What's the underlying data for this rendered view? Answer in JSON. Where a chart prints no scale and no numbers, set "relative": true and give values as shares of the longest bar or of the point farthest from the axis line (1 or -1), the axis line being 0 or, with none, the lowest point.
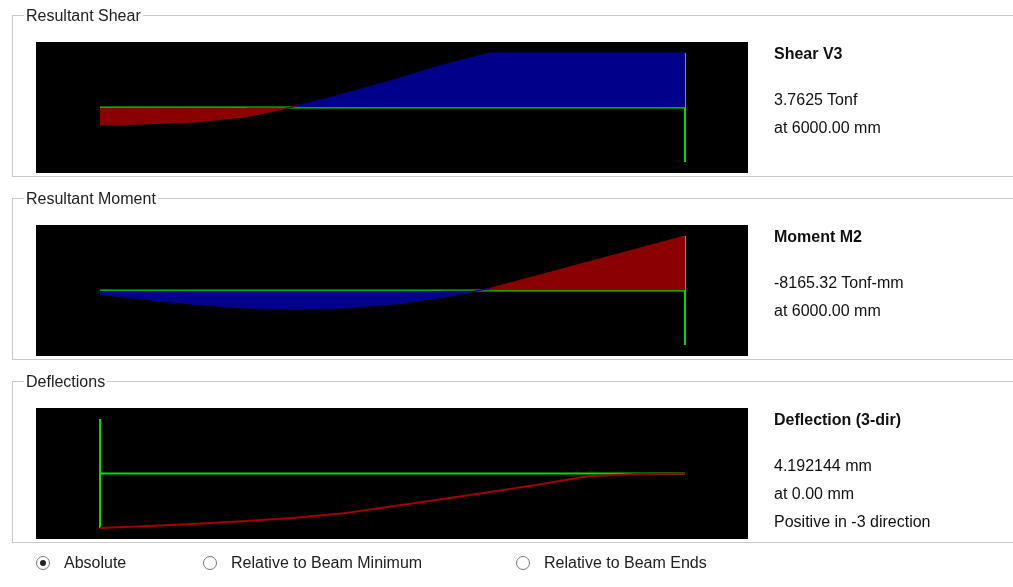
{
  "chart_data": [
    {
      "type": "area",
      "title": "Resultant Shear",
      "annotations": [
        "Shear V3",
        "3.7625 Tonf",
        "at 6000.00 mm"
      ],
      "relative": true,
      "categories": [
        null,
        null,
        null,
        null,
        null,
        null,
        null,
        null,
        null,
        null,
        null,
        null,
        null
      ],
      "series": [
        {
          "color": "#8b0000",
          "values": [
            -0.32,
            -0.3,
            -0.26,
            -0.17,
            0.02,
            null,
            null,
            null,
            null,
            null,
            null,
            null,
            null
          ]
        },
        {
          "color": "#00008b",
          "values": [
            null,
            null,
            null,
            -0.17,
            0.02,
            0.25,
            0.5,
            0.77,
            1,
            1,
            1,
            1,
            1
          ]
        }
      ],
      "ref_lines": [
        {
          "axis": "y",
          "value": 0,
          "color": "#00dd00"
        }
      ]
    },
    {
      "type": "area",
      "title": "Resultant Moment",
      "annotations": [
        "Moment M2",
        "-8165.32 Tonf-mm",
        "at 6000.00 mm"
      ],
      "relative": true,
      "categories": [
        null,
        null,
        null,
        null,
        null,
        null,
        null,
        null,
        null,
        null,
        null,
        null,
        null
      ],
      "series": [
        {
          "color": "#00008b",
          "values": [
            -0.07,
            -0.17,
            -0.26,
            -0.32,
            -0.34,
            -0.32,
            -0.25,
            -0.13,
            0.04,
            null,
            null,
            null,
            null
          ]
        },
        {
          "color": "#8b0000",
          "values": [
            null,
            null,
            null,
            null,
            null,
            null,
            null,
            -0.13,
            0.04,
            0.28,
            0.52,
            0.76,
            1
          ]
        }
      ],
      "ref_lines": [
        {
          "axis": "y",
          "value": 0,
          "color": "#00dd00"
        }
      ]
    },
    {
      "type": "line",
      "title": "Deflections",
      "annotations": [
        "Deflection (3-dir)",
        "4.192144 mm",
        "at 0.00 mm",
        "Positive in -3 direction"
      ],
      "relative": true,
      "categories": [
        null,
        null,
        null,
        null,
        null,
        null,
        null,
        null,
        null,
        null,
        null,
        null,
        null
      ],
      "series": [
        {
          "color": "#a00000",
          "values": [
            -1,
            -0.96,
            -0.92,
            -0.87,
            -0.81,
            -0.73,
            -0.6,
            -0.47,
            -0.34,
            -0.2,
            -0.05,
            -0.01,
            0
          ]
        }
      ],
      "ref_lines": [
        {
          "axis": "y",
          "value": 0,
          "color": "#00dd00"
        }
      ]
    },
    {
      "type": "other",
      "annotations": [
        "Absolute",
        "Relative to Beam Minimum",
        "Relative to Beam Ends"
      ]
    }
  ]
}
